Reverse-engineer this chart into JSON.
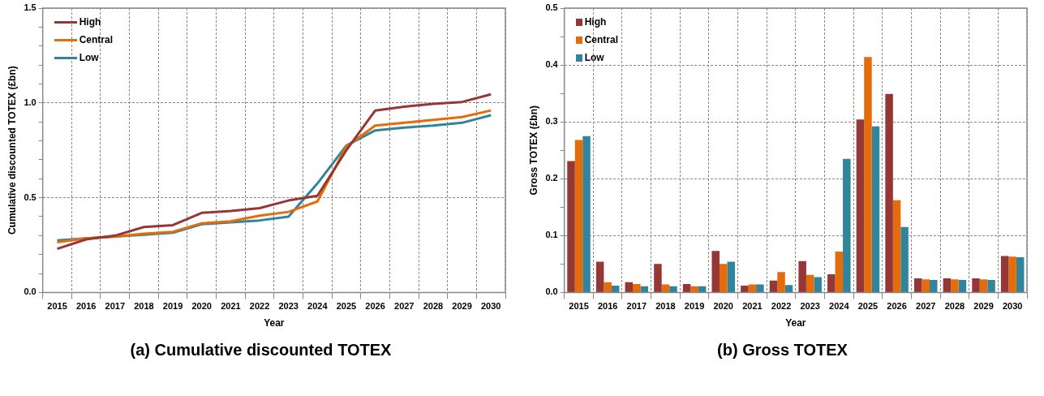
{
  "chart_data": [
    {
      "type": "line",
      "title": "(a) Cumulative discounted TOTEX",
      "xlabel": "Year",
      "ylabel": "Cumulative discounted TOTEX (£bn)",
      "categories": [
        "2015",
        "2016",
        "2017",
        "2018",
        "2019",
        "2020",
        "2021",
        "2022",
        "2023",
        "2024",
        "2025",
        "2026",
        "2027",
        "2028",
        "2029",
        "2030"
      ],
      "series": [
        {
          "name": "High",
          "color": "#953735",
          "values": [
            0.23,
            0.28,
            0.3,
            0.345,
            0.355,
            0.42,
            0.43,
            0.445,
            0.485,
            0.51,
            0.75,
            0.96,
            0.98,
            0.995,
            1.005,
            1.045
          ]
        },
        {
          "name": "Central",
          "color": "#e46c0a",
          "values": [
            0.265,
            0.285,
            0.295,
            0.31,
            0.32,
            0.365,
            0.375,
            0.405,
            0.425,
            0.48,
            0.77,
            0.88,
            0.895,
            0.91,
            0.925,
            0.96
          ]
        },
        {
          "name": "Low",
          "color": "#31849b",
          "values": [
            0.275,
            0.285,
            0.295,
            0.305,
            0.315,
            0.36,
            0.37,
            0.38,
            0.4,
            0.575,
            0.775,
            0.855,
            0.87,
            0.88,
            0.895,
            0.935
          ]
        }
      ],
      "ylim": [
        0,
        1.5
      ],
      "yticks": [
        {
          "value": 0,
          "label": "0.0"
        },
        {
          "value": 0.1,
          "label": null
        },
        {
          "value": 0.2,
          "label": null
        },
        {
          "value": 0.3,
          "label": null
        },
        {
          "value": 0.4,
          "label": null
        },
        {
          "value": 0.5,
          "label": "0.5"
        },
        {
          "value": 0.6,
          "label": null
        },
        {
          "value": 0.7,
          "label": null
        },
        {
          "value": 0.8,
          "label": null
        },
        {
          "value": 0.9,
          "label": null
        },
        {
          "value": 1,
          "label": "1.0"
        },
        {
          "value": 1.1,
          "label": null
        },
        {
          "value": 1.2,
          "label": null
        },
        {
          "value": 1.3,
          "label": null
        },
        {
          "value": 1.4,
          "label": null
        },
        {
          "value": 1.5,
          "label": "1.5"
        }
      ],
      "grid": true,
      "legend": "top left",
      "marker": "none",
      "line_style": "solid"
    },
    {
      "type": "bar",
      "title": "(b) Gross TOTEX",
      "xlabel": "Year",
      "ylabel": "Gross TOTEX (£bn)",
      "categories": [
        "2015",
        "2016",
        "2017",
        "2018",
        "2019",
        "2020",
        "2021",
        "2022",
        "2023",
        "2024",
        "2025",
        "2026",
        "2027",
        "2028",
        "2029",
        "2030"
      ],
      "series": [
        {
          "name": "High",
          "color": "#953735",
          "values": [
            0.231,
            0.054,
            0.018,
            0.05,
            0.015,
            0.073,
            0.012,
            0.021,
            0.055,
            0.032,
            0.304,
            0.349,
            0.025,
            0.025,
            0.025,
            0.064
          ]
        },
        {
          "name": "Central",
          "color": "#e46c0a",
          "values": [
            0.268,
            0.018,
            0.015,
            0.014,
            0.011,
            0.05,
            0.014,
            0.036,
            0.031,
            0.072,
            0.414,
            0.162,
            0.023,
            0.023,
            0.023,
            0.063
          ]
        },
        {
          "name": "Low",
          "color": "#31849b",
          "values": [
            0.275,
            0.012,
            0.011,
            0.011,
            0.011,
            0.054,
            0.014,
            0.013,
            0.027,
            0.235,
            0.292,
            0.115,
            0.022,
            0.022,
            0.022,
            0.062
          ]
        }
      ],
      "ylim": [
        0,
        0.5
      ],
      "yticks": [
        {
          "value": 0,
          "label": "0.0"
        },
        {
          "value": 0.05,
          "label": null
        },
        {
          "value": 0.1,
          "label": "0.1"
        },
        {
          "value": 0.15,
          "label": null
        },
        {
          "value": 0.2,
          "label": "0.2"
        },
        {
          "value": 0.25,
          "label": null
        },
        {
          "value": 0.3,
          "label": "0.3"
        },
        {
          "value": 0.35,
          "label": null
        },
        {
          "value": 0.4,
          "label": "0.4"
        },
        {
          "value": 0.45,
          "label": null
        },
        {
          "value": 0.5,
          "label": "0.5"
        }
      ],
      "grid": true,
      "legend": "top left"
    }
  ]
}
